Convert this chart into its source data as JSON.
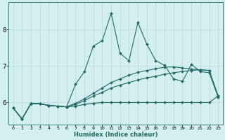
{
  "xlabel": "Humidex (Indice chaleur)",
  "background_color": "#d4efef",
  "grid_color": "#b8dada",
  "line_color": "#1f6b64",
  "xlim": [
    -0.5,
    23.5
  ],
  "ylim": [
    5.4,
    8.75
  ],
  "yticks": [
    6,
    7,
    8
  ],
  "xticks": [
    0,
    1,
    2,
    3,
    4,
    5,
    6,
    7,
    8,
    9,
    10,
    11,
    12,
    13,
    14,
    15,
    16,
    17,
    18,
    19,
    20,
    21,
    22,
    23
  ],
  "series": [
    [
      5.85,
      5.55,
      5.97,
      5.97,
      5.92,
      5.9,
      5.88,
      6.5,
      6.85,
      7.55,
      7.7,
      8.45,
      7.35,
      7.15,
      8.2,
      7.6,
      7.15,
      7.02,
      6.65,
      6.58,
      7.05,
      6.85,
      6.82,
      6.15
    ],
    [
      5.85,
      5.55,
      5.97,
      5.97,
      5.92,
      5.9,
      5.88,
      5.9,
      5.95,
      5.98,
      6.0,
      6.0,
      6.0,
      6.0,
      6.0,
      6.0,
      6.0,
      6.0,
      6.0,
      6.0,
      6.0,
      6.0,
      6.0,
      6.18
    ],
    [
      5.85,
      5.55,
      5.97,
      5.97,
      5.92,
      5.9,
      5.88,
      5.95,
      6.05,
      6.18,
      6.28,
      6.4,
      6.48,
      6.55,
      6.62,
      6.68,
      6.72,
      6.78,
      6.82,
      6.85,
      6.88,
      6.9,
      6.88,
      6.18
    ],
    [
      5.85,
      5.55,
      5.97,
      5.97,
      5.92,
      5.9,
      5.88,
      5.98,
      6.1,
      6.25,
      6.4,
      6.55,
      6.65,
      6.75,
      6.83,
      6.88,
      6.93,
      6.97,
      6.98,
      6.95,
      6.92,
      6.9,
      6.88,
      6.18
    ]
  ]
}
